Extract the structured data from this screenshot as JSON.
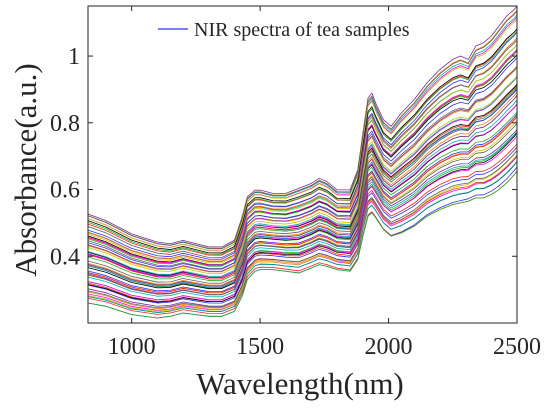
{
  "chart_data": {
    "type": "line",
    "title": "",
    "xlabel": "Wavelength(nm)",
    "ylabel": "Absorbance(a.u.)",
    "xlim": [
      830,
      2500
    ],
    "ylim": [
      0.2,
      1.15
    ],
    "xticks": [
      1000,
      1500,
      2000,
      2500
    ],
    "yticks": [
      0.4,
      0.6,
      0.8,
      1.0
    ],
    "xtick_labels": [
      "1000",
      "1500",
      "2000",
      "2500"
    ],
    "ytick_labels": [
      "0.4",
      "0.6",
      "0.8",
      "1"
    ],
    "grid": false,
    "legend": {
      "position": "top",
      "entries": [
        {
          "label": "NIR spectra of tea samples",
          "color": "#3030ff"
        }
      ]
    },
    "series_count": 60,
    "series_colors": [
      "#3030ff",
      "#ff2020",
      "#20b020",
      "#000000",
      "#ff00ff",
      "#00b0b0",
      "#c8c800",
      "#7030a0",
      "#ff8000",
      "#606060"
    ],
    "x": [
      830,
      900,
      1000,
      1100,
      1150,
      1200,
      1250,
      1300,
      1350,
      1400,
      1430,
      1450,
      1480,
      1500,
      1550,
      1600,
      1650,
      1700,
      1730,
      1760,
      1800,
      1850,
      1880,
      1900,
      1920,
      1935,
      1950,
      1980,
      2010,
      2050,
      2100,
      2150,
      2200,
      2250,
      2280,
      2310,
      2340,
      2370,
      2400,
      2430,
      2460,
      2490,
      2500
    ],
    "lower_envelope": [
      0.26,
      0.25,
      0.225,
      0.215,
      0.22,
      0.23,
      0.225,
      0.22,
      0.22,
      0.235,
      0.28,
      0.33,
      0.355,
      0.36,
      0.36,
      0.355,
      0.35,
      0.365,
      0.375,
      0.37,
      0.36,
      0.355,
      0.39,
      0.46,
      0.52,
      0.53,
      0.515,
      0.48,
      0.46,
      0.47,
      0.49,
      0.52,
      0.54,
      0.555,
      0.56,
      0.565,
      0.575,
      0.575,
      0.585,
      0.6,
      0.62,
      0.645,
      0.655
    ],
    "upper_envelope": [
      0.53,
      0.51,
      0.47,
      0.445,
      0.44,
      0.45,
      0.44,
      0.43,
      0.43,
      0.45,
      0.52,
      0.58,
      0.6,
      0.6,
      0.59,
      0.59,
      0.605,
      0.62,
      0.635,
      0.625,
      0.6,
      0.6,
      0.66,
      0.77,
      0.875,
      0.89,
      0.86,
      0.81,
      0.79,
      0.83,
      0.87,
      0.92,
      0.96,
      0.99,
      1.0,
      0.99,
      1.03,
      1.04,
      1.06,
      1.09,
      1.12,
      1.14,
      1.15
    ]
  }
}
